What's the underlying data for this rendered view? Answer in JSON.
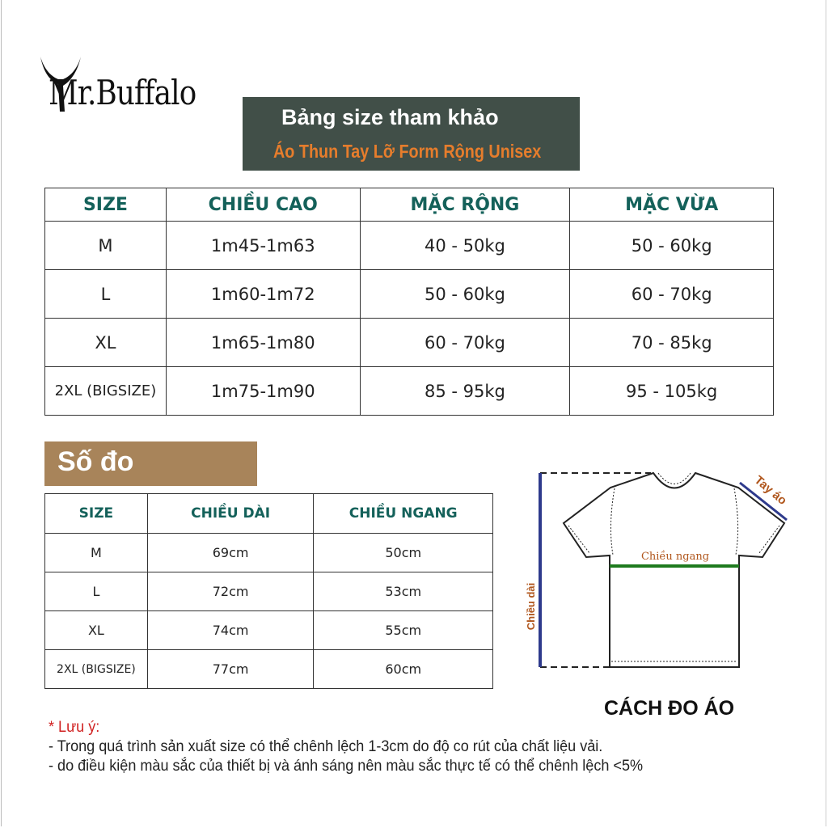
{
  "brand": "Mr.Buffalo",
  "header": {
    "title": "Bảng size tham khảo",
    "subtitle": "Áo Thun Tay Lỡ Form Rộng Unisex"
  },
  "size_table": {
    "headers": [
      "SIZE",
      "CHIỀU CAO",
      "MẶC RỘNG",
      "MẶC VỪA"
    ],
    "rows": [
      [
        "M",
        "1m45-1m63",
        "40 - 50kg",
        "50 - 60kg"
      ],
      [
        "L",
        "1m60-1m72",
        "50 - 60kg",
        "60 - 70kg"
      ],
      [
        "XL",
        "1m65-1m80",
        "60 - 70kg",
        "70 - 85kg"
      ],
      [
        "2XL (BIGSIZE)",
        "1m75-1m90",
        "85 - 95kg",
        "95 - 105kg"
      ]
    ]
  },
  "measure_section": {
    "title": "Số đo"
  },
  "measure_table": {
    "headers": [
      "SIZE",
      "CHIỀU DÀI",
      "CHIỀU NGANG"
    ],
    "rows": [
      [
        "M",
        "69cm",
        "50cm"
      ],
      [
        "L",
        "72cm",
        "53cm"
      ],
      [
        "XL",
        "74cm",
        "55cm"
      ],
      [
        "2XL (BIGSIZE)",
        "77cm",
        "60cm"
      ]
    ]
  },
  "diagram": {
    "length_label": "Chiều dài",
    "width_label": "Chiều ngang",
    "sleeve_label": "Tay áo",
    "caption": "CÁCH ĐO ÁO"
  },
  "notes": {
    "title": "* Lưu ý:",
    "lines": [
      "- Trong quá trình sản xuất size có thể chênh lệch 1-3cm do độ co rút của chất liệu vải.",
      "- do điều kiện màu sắc của thiết bị và ánh sáng nên màu sắc thực tế có thể chênh lệch <5%"
    ]
  },
  "colors": {
    "title_bg": "#414f48",
    "subtitle": "#e67d2c",
    "header_text": "#14615a",
    "section_bg": "#a8845a",
    "note_title": "#d02020",
    "measure_blue": "#2e3a8c",
    "measure_green": "#1e7a1e",
    "label_brown": "#b0561c"
  }
}
